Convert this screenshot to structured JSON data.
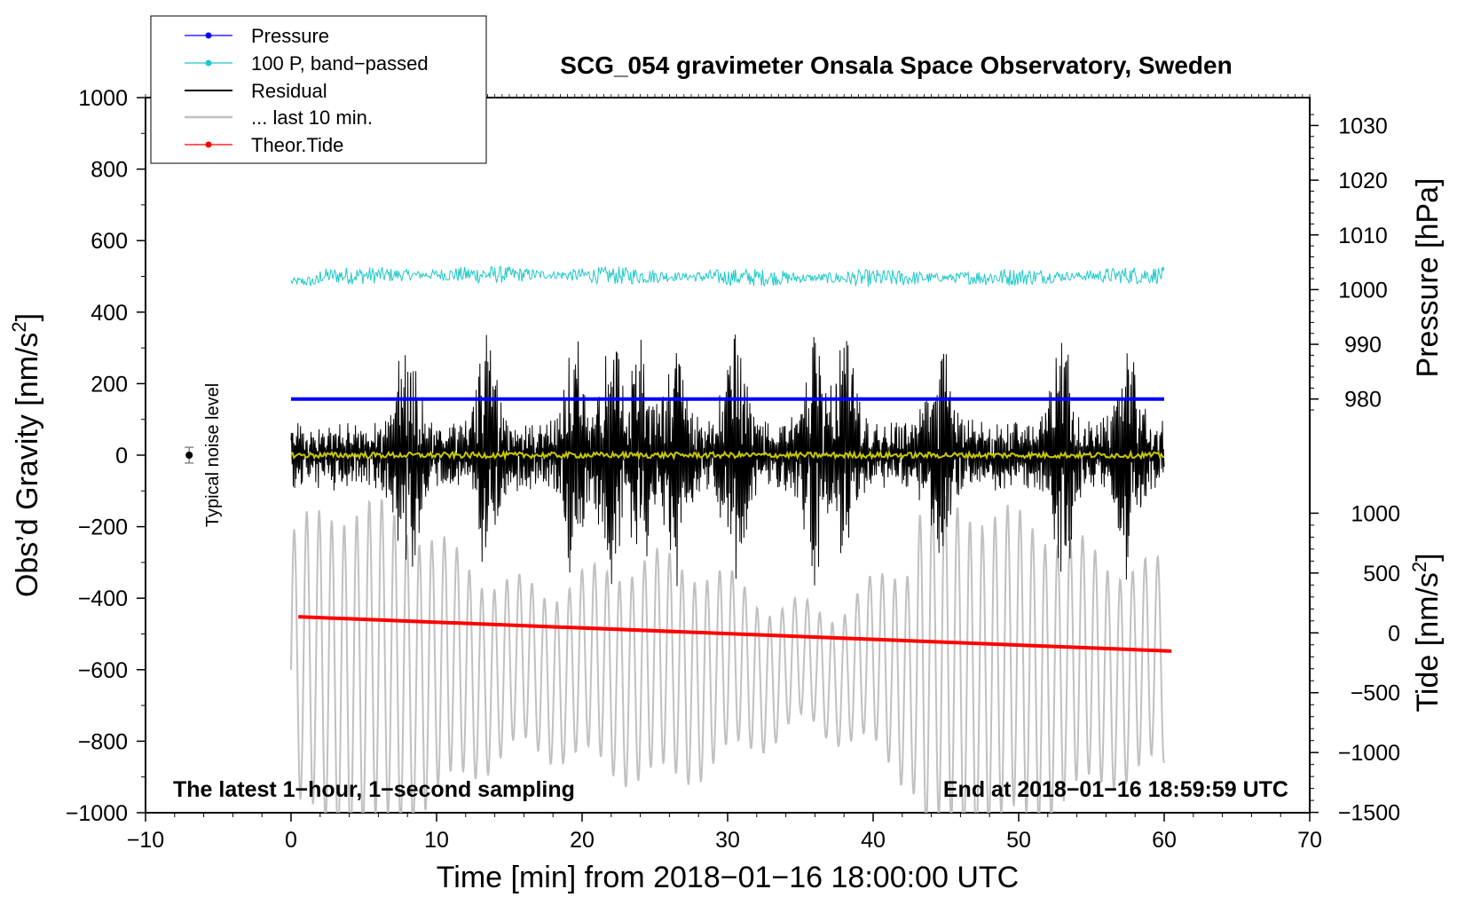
{
  "chart_data": {
    "type": "line",
    "title": "SCG_054 gravimeter Onsala Space Observatory, Sweden",
    "xlabel": "Time [min] from 2018−01−16 18:00:00 UTC",
    "ylabel_main": "Obs’d Gravity [nm/s",
    "ylabel_main_sup": "2",
    "ylabel_main_end": "]",
    "ylabel_pressure": "Pressure [hPa]",
    "ylabel_tide": "Tide [nm/s",
    "ylabel_tide_sup": "2",
    "ylabel_tide_end": "]",
    "xlim": [
      -10,
      70
    ],
    "ylim": [
      -1000,
      1000
    ],
    "xticks": [
      -10,
      0,
      10,
      20,
      30,
      40,
      50,
      60,
      70
    ],
    "xtick_labels": [
      "−10",
      "0",
      "10",
      "20",
      "30",
      "40",
      "50",
      "60",
      "70"
    ],
    "yticks": [
      -1000,
      -800,
      -600,
      -400,
      -200,
      0,
      200,
      400,
      600,
      800,
      1000
    ],
    "ytick_labels": [
      "−1000",
      "−800",
      "−600",
      "−400",
      "−200",
      "0",
      "200",
      "400",
      "600",
      "800",
      "1000"
    ],
    "pressure_axis": {
      "ticks": [
        980,
        990,
        1000,
        1010,
        1020,
        1030
      ],
      "tick_labels": [
        "980",
        "990",
        "1000",
        "1010",
        "1020",
        "1030"
      ],
      "gravity_at_980": 157,
      "gravity_per_hPa": 15.3
    },
    "tide_axis": {
      "ticks": [
        -1500,
        -1000,
        -500,
        0,
        500,
        1000
      ],
      "tick_labels": [
        "−1500",
        "−1000",
        "−500",
        "0",
        "500",
        "1000"
      ],
      "gravity_at_0": -497,
      "gravity_per_unit": 0.3347
    },
    "series": [
      {
        "name": "Pressure",
        "color": "#0000ff",
        "x_range": [
          0,
          60
        ],
        "value_hPa": 980,
        "gravity_level": 157
      },
      {
        "name": "100 P, band−passed",
        "color": "#20c8c8",
        "x_range": [
          0,
          60
        ],
        "center": 500,
        "amplitude": 25
      },
      {
        "name": "Residual",
        "color": "#000000",
        "x_range": [
          0,
          60
        ],
        "center": 0,
        "amplitude_range": [
          100,
          370
        ]
      },
      {
        "name": "... last 10 min.",
        "color": "#c0c0c0",
        "x_range": [
          0,
          60
        ],
        "center": -600,
        "amplitude_range": [
          100,
          450
        ]
      },
      {
        "name": "Theor.Tide",
        "color": "#ff0000",
        "x_range": [
          0.5,
          60.5
        ],
        "y_start": -452,
        "y_end": -548
      },
      {
        "name": "Mean residual",
        "color": "#c8c800",
        "x_range": [
          0,
          60
        ],
        "center": 0,
        "amplitude": 8
      }
    ],
    "legend": {
      "placement": "top-left",
      "entries": [
        "Pressure",
        "100 P, band−passed",
        "Residual",
        "... last 10 min.",
        "Theor.Tide"
      ]
    },
    "noise_marker": {
      "x": -7,
      "y": 0,
      "err": 22,
      "label": "Typical noise level"
    },
    "annotations": {
      "bottom_left": "The latest 1−hour, 1−second sampling",
      "bottom_right": "End at 2018−01−16 18:59:59 UTC"
    }
  }
}
